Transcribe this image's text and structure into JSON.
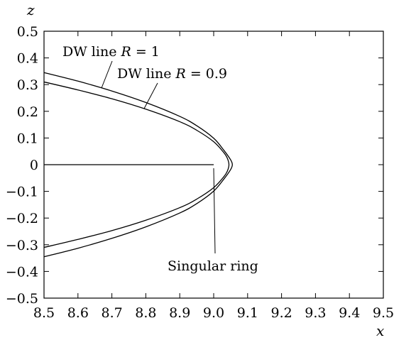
{
  "chart_data": {
    "type": "line",
    "title": "",
    "xlabel": "x",
    "ylabel": "z",
    "xlim": [
      8.5,
      9.5
    ],
    "ylim": [
      -0.5,
      0.5
    ],
    "xticks": [
      "8.5",
      "8.6",
      "8.7",
      "8.8",
      "8.9",
      "9.0",
      "9.1",
      "9.2",
      "9.3",
      "9.4",
      "9.5"
    ],
    "yticks": [
      "0.5",
      "0.4",
      "0.3",
      "0.2",
      "0.1",
      "0",
      "−0.1",
      "−0.2",
      "−0.3",
      "−0.4",
      "−0.5"
    ],
    "grid": false,
    "series": [
      {
        "name": "DW line R = 1",
        "color": "#000000",
        "x": [
          8.5,
          8.6,
          8.7,
          8.8,
          8.9,
          8.95,
          9.0,
          9.03,
          9.05,
          9.055,
          9.05,
          9.03,
          9.0,
          8.95,
          8.9,
          8.8,
          8.7,
          8.6,
          8.5
        ],
        "y": [
          0.345,
          0.313,
          0.276,
          0.233,
          0.181,
          0.146,
          0.099,
          0.054,
          0.018,
          0.0,
          -0.018,
          -0.054,
          -0.099,
          -0.146,
          -0.181,
          -0.233,
          -0.276,
          -0.313,
          -0.345
        ]
      },
      {
        "name": "DW line R = 0.9",
        "color": "#000000",
        "x": [
          8.5,
          8.6,
          8.7,
          8.8,
          8.9,
          8.95,
          9.0,
          9.03,
          9.04,
          9.045,
          9.04,
          9.03,
          9.0,
          8.95,
          8.9,
          8.8,
          8.7,
          8.6,
          8.5
        ],
        "y": [
          0.31,
          0.28,
          0.247,
          0.208,
          0.161,
          0.129,
          0.086,
          0.045,
          0.025,
          0.0,
          -0.025,
          -0.045,
          -0.086,
          -0.129,
          -0.161,
          -0.208,
          -0.247,
          -0.28,
          -0.31
        ]
      }
    ],
    "singular_ring": {
      "x": [
        8.5,
        9.0
      ],
      "y": [
        0,
        0
      ]
    },
    "annotations": {
      "dw1": {
        "prefix": "DW line ",
        "var": "R",
        "suffix": " = 1",
        "point": [
          8.665,
          0.29
        ]
      },
      "dw09": {
        "prefix": "DW line ",
        "var": "R",
        "suffix": " = 0.9",
        "point": [
          8.79,
          0.21
        ]
      },
      "ring": {
        "text": "Singular ring",
        "point": [
          9.0,
          -0.02
        ]
      }
    }
  }
}
